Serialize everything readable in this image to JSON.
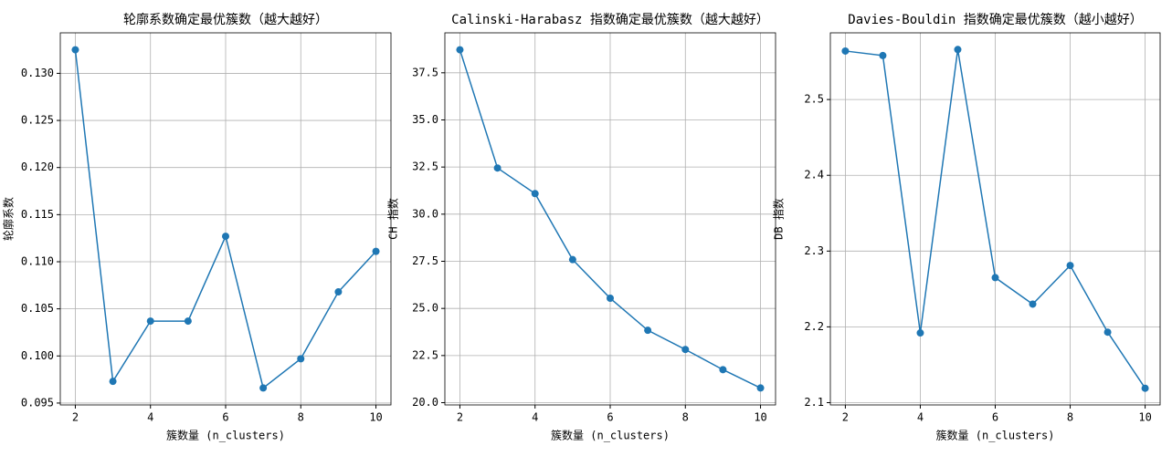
{
  "chart_data": [
    {
      "type": "line",
      "title": "轮廓系数确定最优簇数（越大越好）",
      "xlabel": "簇数量 (n_clusters)",
      "ylabel": "轮廓系数",
      "x": [
        2,
        3,
        4,
        5,
        6,
        7,
        8,
        9,
        10
      ],
      "values": [
        0.1325,
        0.0973,
        0.1037,
        0.1037,
        0.1127,
        0.0966,
        0.0997,
        0.1068,
        0.1111
      ],
      "color": "#1f77b4",
      "grid": true,
      "xlim": [
        1.6,
        10.4
      ],
      "xticks": [
        2,
        4,
        6,
        8,
        10
      ],
      "ylim": [
        0.0948,
        0.1343
      ],
      "yticks": [
        {
          "value": 0.095,
          "label": "0.095"
        },
        {
          "value": 0.1,
          "label": "0.100"
        },
        {
          "value": 0.105,
          "label": "0.105"
        },
        {
          "value": 0.11,
          "label": "0.110"
        },
        {
          "value": 0.115,
          "label": "0.115"
        },
        {
          "value": 0.12,
          "label": "0.120"
        },
        {
          "value": 0.125,
          "label": "0.125"
        },
        {
          "value": 0.13,
          "label": "0.130"
        }
      ]
    },
    {
      "type": "line",
      "title": "Calinski-Harabasz 指数确定最优簇数（越大越好）",
      "xlabel": "簇数量 (n_clusters)",
      "ylabel": "CH 指数",
      "x": [
        2,
        3,
        4,
        5,
        6,
        7,
        8,
        9,
        10
      ],
      "values": [
        38.72,
        32.45,
        31.09,
        27.59,
        25.54,
        23.84,
        22.82,
        21.75,
        20.78
      ],
      "color": "#1f77b4",
      "grid": true,
      "xlim": [
        1.6,
        10.4
      ],
      "xticks": [
        2,
        4,
        6,
        8,
        10
      ],
      "ylim": [
        19.88,
        39.62
      ],
      "yticks": [
        {
          "value": 20,
          "label": "20.0"
        },
        22.5,
        {
          "value": 25,
          "label": "25.0"
        },
        27.5,
        {
          "value": 30,
          "label": "30.0"
        },
        32.5,
        {
          "value": 35,
          "label": "35.0"
        },
        37.5
      ]
    },
    {
      "type": "line",
      "title": "Davies-Bouldin 指数确定最优簇数（越小越好）",
      "xlabel": "簇数量 (n_clusters)",
      "ylabel": "DB 指数",
      "x": [
        2,
        3,
        4,
        5,
        6,
        7,
        8,
        9,
        10
      ],
      "values": [
        2.564,
        2.558,
        2.192,
        2.566,
        2.265,
        2.23,
        2.281,
        2.193,
        2.119
      ],
      "color": "#1f77b4",
      "grid": true,
      "xlim": [
        1.6,
        10.4
      ],
      "xticks": [
        2,
        4,
        6,
        8,
        10
      ],
      "ylim": [
        2.097,
        2.588
      ],
      "yticks": [
        2.1,
        2.2,
        2.3,
        2.4,
        2.5
      ]
    }
  ]
}
